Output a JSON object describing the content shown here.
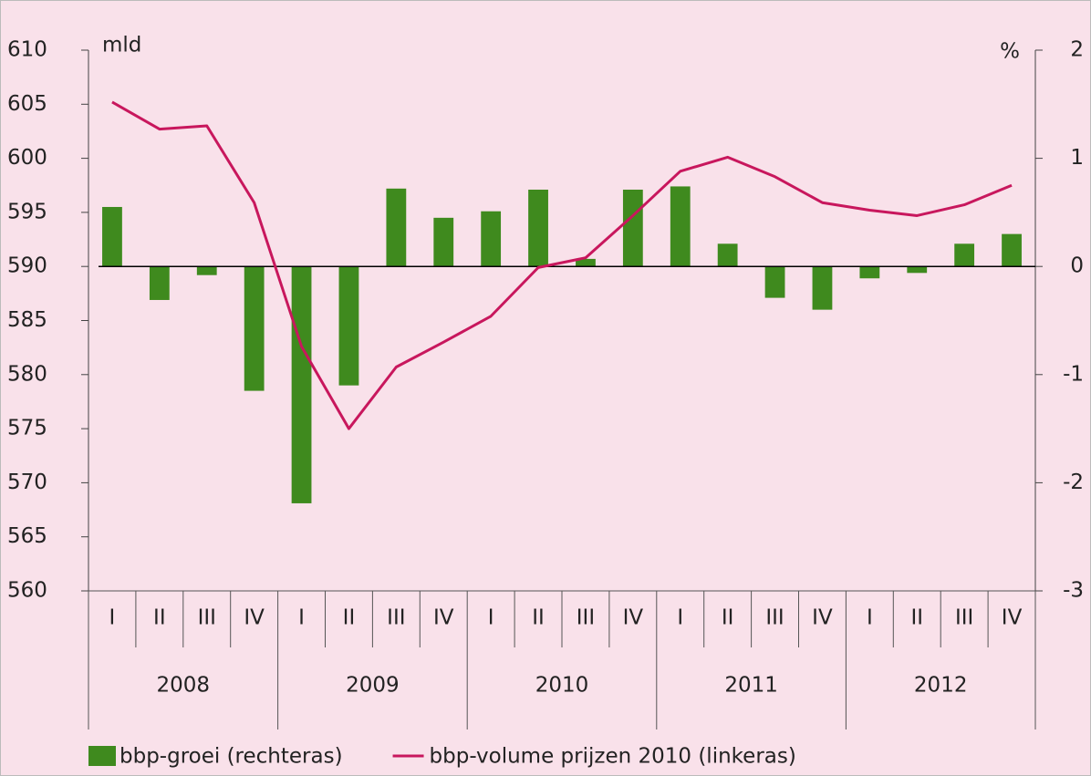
{
  "chart_data": {
    "type": "bar",
    "left_unit": "mld",
    "right_unit": "%",
    "categories": [
      "I",
      "II",
      "III",
      "IV",
      "I",
      "II",
      "III",
      "IV",
      "I",
      "II",
      "III",
      "IV",
      "I",
      "II",
      "III",
      "IV",
      "I",
      "II",
      "III",
      "IV"
    ],
    "years": [
      "2008",
      "2009",
      "2010",
      "2011",
      "2012"
    ],
    "series": [
      {
        "name": "bbp-groei (rechteras)",
        "type": "bar",
        "axis": "y2",
        "color": "#3f8a1e",
        "values": [
          0.55,
          -0.31,
          -0.08,
          -1.15,
          -2.19,
          -1.1,
          0.72,
          0.45,
          0.51,
          0.71,
          0.07,
          0.71,
          0.74,
          0.21,
          -0.29,
          -0.4,
          -0.11,
          -0.06,
          0.21,
          0.3
        ]
      },
      {
        "name": "bbp-volume prijzen 2010 (linkeras)",
        "type": "line",
        "axis": "y",
        "color": "#c8175d",
        "values": [
          605.2,
          602.7,
          603.0,
          595.9,
          582.6,
          575.0,
          580.7,
          583.0,
          585.4,
          589.9,
          590.8,
          594.7,
          598.8,
          600.1,
          598.3,
          595.9,
          595.2,
          594.7,
          595.7,
          597.5
        ]
      }
    ],
    "ylim": [
      560,
      610
    ],
    "yticks": [
      560,
      565,
      570,
      575,
      580,
      585,
      590,
      595,
      600,
      605,
      610
    ],
    "y2lim": [
      -3,
      2
    ],
    "y2ticks": [
      -3,
      -2,
      -1,
      0,
      1,
      2
    ]
  }
}
